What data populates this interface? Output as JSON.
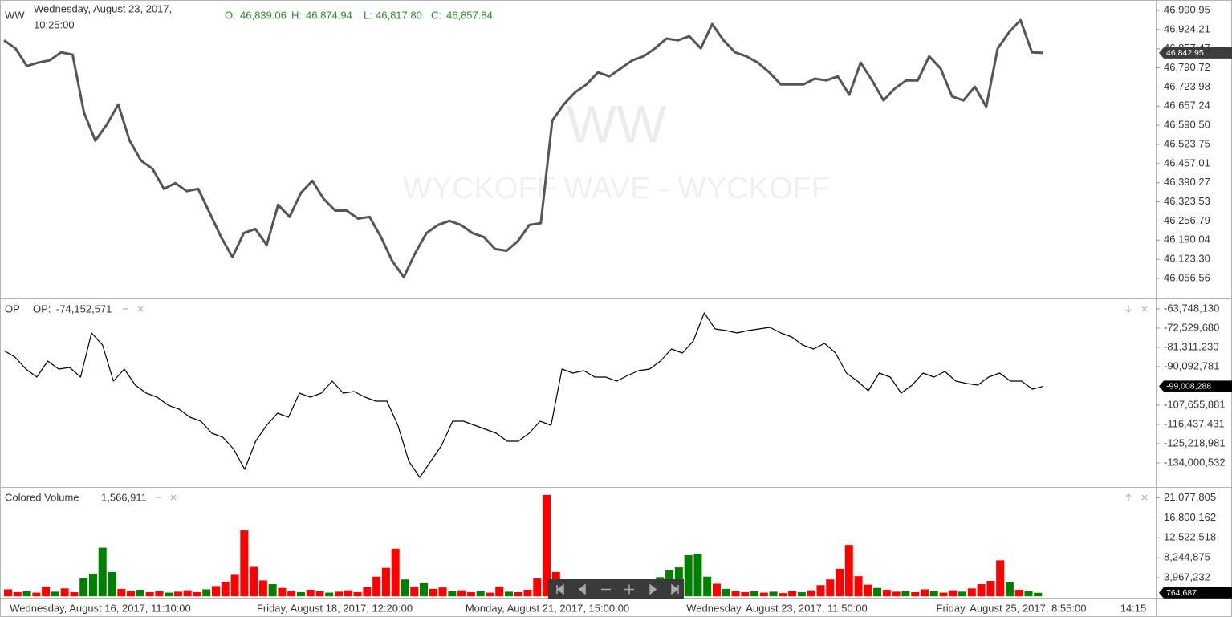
{
  "chart_data": [
    {
      "type": "line",
      "title": "WW",
      "date": [
        "Wednesday, August 23, 2017,",
        "10:25:00"
      ],
      "ohlc": [
        {
          "label": "O:",
          "value": "46,839.06"
        },
        {
          "label": "H:",
          "value": "46,874.94"
        },
        {
          "label": "L:",
          "value": "46,817.80"
        },
        {
          "label": "C:",
          "value": "46,857.84"
        }
      ],
      "watermark": [
        "WW",
        "WYCKOFF WAVE - WYCKOFF"
      ],
      "color": "#555555",
      "last_label": "46,842.95",
      "values": [
        46887,
        46859,
        46797,
        46809,
        46817,
        46845,
        46837,
        46635,
        46537,
        46593,
        46663,
        46537,
        46467,
        46439,
        46369,
        46389,
        46361,
        46369,
        46285,
        46201,
        46131,
        46215,
        46229,
        46173,
        46313,
        46271,
        46355,
        46397,
        46333,
        46293,
        46293,
        46265,
        46271,
        46201,
        46117,
        46061,
        46145,
        46215,
        46243,
        46257,
        46243,
        46215,
        46201,
        46159,
        46153,
        46187,
        46243,
        46249,
        46607,
        46663,
        46705,
        46733,
        46775,
        46761,
        46789,
        46817,
        46831,
        46859,
        46893,
        46887,
        46901,
        46859,
        46943,
        46887,
        46845,
        46831,
        46809,
        46775,
        46733,
        46733,
        46733,
        46753,
        46747,
        46761,
        46697,
        46809,
        46747,
        46677,
        46719,
        46747,
        46747,
        46831,
        46789,
        46691,
        46677,
        46725,
        46655,
        46859,
        46915,
        46957,
        46845,
        46842.95
      ],
      "ylim": [
        45986.6,
        47027.3
      ],
      "yticks": [
        {
          "value": 46990.95,
          "label": "46,990.95"
        },
        {
          "value": 46924.21,
          "label": "46,924.21"
        },
        {
          "value": 46857.47,
          "label": "46,857.47"
        },
        {
          "value": 46790.72,
          "label": "46,790.72"
        },
        {
          "value": 46723.98,
          "label": "46,723.98"
        },
        {
          "value": 46657.24,
          "label": "46,657.24"
        },
        {
          "value": 46590.5,
          "label": "46,590.50"
        },
        {
          "value": 46523.75,
          "label": "46,523.75"
        },
        {
          "value": 46457.01,
          "label": "46,457.01"
        },
        {
          "value": 46390.27,
          "label": "46,390.27"
        },
        {
          "value": 46323.53,
          "label": "46,323.53"
        },
        {
          "value": 46256.79,
          "label": "46,256.79"
        },
        {
          "value": 46190.04,
          "label": "46,190.04"
        },
        {
          "value": 46123.3,
          "label": "46,123.30"
        },
        {
          "value": 46056.56,
          "label": "46,056.56"
        }
      ]
    },
    {
      "type": "line",
      "title": "OP",
      "legend_label": "OP:",
      "legend_value": "-74,152,571",
      "color": "#000000",
      "last_label": "-99,008,288",
      "values": [
        -82775000,
        -85702000,
        -91190000,
        -94849000,
        -87532000,
        -91190000,
        -90459000,
        -94849000,
        -74725000,
        -80213000,
        -96679000,
        -91190000,
        -98508000,
        -102167000,
        -103997000,
        -107656000,
        -109485000,
        -113144000,
        -114974000,
        -120463000,
        -122292000,
        -127780000,
        -136928000,
        -124121000,
        -116803000,
        -111315000,
        -113144000,
        -102167000,
        -103997000,
        -102167000,
        -96679000,
        -102167000,
        -101435000,
        -103997000,
        -105826000,
        -105826000,
        -116803000,
        -133269000,
        -140587000,
        -133269000,
        -125951000,
        -114974000,
        -114974000,
        -116803000,
        -118633000,
        -120463000,
        -124121000,
        -124121000,
        -120463000,
        -114974000,
        -116803000,
        -91190000,
        -93020000,
        -91922000,
        -94849000,
        -94849000,
        -96679000,
        -94118000,
        -91922000,
        -91190000,
        -87532000,
        -82043000,
        -83873000,
        -78384000,
        -65578000,
        -72896000,
        -73628000,
        -74725000,
        -73628000,
        -72896000,
        -72164000,
        -74725000,
        -76555000,
        -80213000,
        -82043000,
        -79482000,
        -83873000,
        -93020000,
        -96679000,
        -101070000,
        -93020000,
        -94849000,
        -102167000,
        -98508000,
        -93020000,
        -94849000,
        -92288000,
        -96679000,
        -97777000,
        -98508000,
        -94849000,
        -93020000,
        -96679000,
        -96679000,
        -100338000,
        -99008288
      ],
      "ylim": [
        -144977000,
        -59357000
      ],
      "yticks": [
        {
          "value": -63748130,
          "label": "-63,748,130"
        },
        {
          "value": -72529680,
          "label": "-72,529,680"
        },
        {
          "value": -81311230,
          "label": "-81,311,230"
        },
        {
          "value": -90092781,
          "label": "-90,092,781"
        },
        {
          "value": -107655881,
          "label": "-107,655,881"
        },
        {
          "value": -116437431,
          "label": "-116,437,431"
        },
        {
          "value": -125218981,
          "label": "-125,218,981"
        },
        {
          "value": -134000532,
          "label": "-134,000,532"
        }
      ]
    },
    {
      "type": "bar",
      "title": "Colored Volume",
      "legend_value": "1,566,911",
      "last_label": "764,687",
      "values": [
        1500000,
        900000,
        1200000,
        800000,
        2100000,
        1000000,
        1700000,
        900000,
        3900000,
        4800000,
        10400000,
        5200000,
        1600000,
        1100000,
        1400000,
        900000,
        1200000,
        800000,
        1000000,
        1300000,
        900000,
        1500000,
        2200000,
        3100000,
        4600000,
        14100000,
        6300000,
        3400000,
        2600000,
        1800000,
        1200000,
        900000,
        1400000,
        1100000,
        800000,
        1000000,
        1300000,
        900000,
        2000000,
        4200000,
        6100000,
        10200000,
        3600000,
        2100000,
        2800000,
        1600000,
        1900000,
        1100000,
        1300000,
        900000,
        1200000,
        800000,
        2100000,
        1000000,
        900000,
        1400000,
        3800000,
        21700000,
        5200000,
        2300000,
        1800000,
        1100000,
        900000,
        1200000,
        800000,
        1000000,
        1300000,
        1800000,
        3200000,
        4100000,
        5600000,
        6200000,
        8800000,
        9100000,
        4200000,
        2700000,
        1600000,
        1200000,
        900000,
        1100000,
        800000,
        1000000,
        700000,
        1200000,
        900000,
        1300000,
        2400000,
        3600000,
        5900000,
        11000000,
        4300000,
        2500000,
        1800000,
        1400000,
        1000000,
        1200000,
        900000,
        1500000,
        1100000,
        800000,
        1300000,
        1000000,
        1700000,
        2600000,
        3300000,
        7700000,
        3000000,
        1400000,
        1200000,
        764687
      ],
      "colors": [
        "red",
        "red",
        "green",
        "red",
        "red",
        "green",
        "red",
        "red",
        "green",
        "green",
        "green",
        "green",
        "red",
        "red",
        "green",
        "red",
        "red",
        "green",
        "red",
        "red",
        "red",
        "green",
        "red",
        "red",
        "red",
        "red",
        "red",
        "red",
        "green",
        "red",
        "red",
        "green",
        "red",
        "red",
        "green",
        "red",
        "red",
        "red",
        "red",
        "red",
        "red",
        "red",
        "green",
        "red",
        "green",
        "red",
        "red",
        "green",
        "red",
        "red",
        "green",
        "red",
        "red",
        "green",
        "red",
        "red",
        "red",
        "red",
        "red",
        "green",
        "red",
        "green",
        "red",
        "red",
        "green",
        "red",
        "red",
        "red",
        "green",
        "green",
        "green",
        "green",
        "green",
        "green",
        "green",
        "red",
        "green",
        "red",
        "red",
        "green",
        "red",
        "green",
        "red",
        "red",
        "green",
        "red",
        "red",
        "red",
        "red",
        "red",
        "red",
        "red",
        "green",
        "red",
        "red",
        "green",
        "red",
        "red",
        "green",
        "red",
        "red",
        "green",
        "red",
        "red",
        "red",
        "red",
        "green",
        "red",
        "green",
        "green"
      ],
      "ylim": [
        -310411,
        23216625
      ],
      "yticks": [
        {
          "value": 21077805,
          "label": "21,077,805"
        },
        {
          "value": 16800162,
          "label": "16,800,162"
        },
        {
          "value": 12522518,
          "label": "12,522,518"
        },
        {
          "value": 8244875,
          "label": "8,244,875"
        },
        {
          "value": 3967232,
          "label": "3,967,232"
        }
      ]
    }
  ],
  "x_axis_labels": [
    "Wednesday, August 16, 2017, 11:10:00",
    "Friday, August 18, 2017, 12:20:00",
    "Monday, August 21, 2017, 15:00:00",
    "Wednesday, August 23, 2017, 11:50:00",
    "Friday, August 25, 2017, 8:55:00",
    "14:15"
  ]
}
